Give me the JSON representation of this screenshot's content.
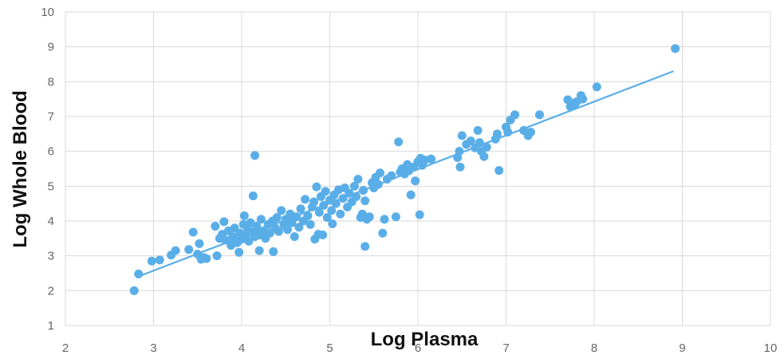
{
  "chart_data": {
    "type": "scatter",
    "title": "",
    "xlabel": "Log Plasma",
    "ylabel": "Log Whole Blood",
    "xlim": [
      2,
      10
    ],
    "ylim": [
      1,
      10
    ],
    "x_ticks": [
      "2",
      "3",
      "4",
      "5",
      "6",
      "7",
      "8",
      "9",
      "10"
    ],
    "y_ticks": [
      "1",
      "2",
      "3",
      "4",
      "5",
      "6",
      "7",
      "8",
      "9",
      "10"
    ],
    "grid": true,
    "legend": "none",
    "colors": {
      "points": "#5aaee8",
      "trendline": "#5aaee8",
      "grid": "#d9d9d9"
    },
    "trendline": {
      "x": [
        2.8,
        8.9
      ],
      "y": [
        2.38,
        8.3
      ]
    },
    "points": [
      [
        2.78,
        2.0
      ],
      [
        2.83,
        2.48
      ],
      [
        2.98,
        2.85
      ],
      [
        3.07,
        2.88
      ],
      [
        3.2,
        3.02
      ],
      [
        3.25,
        3.15
      ],
      [
        3.4,
        3.18
      ],
      [
        3.45,
        3.68
      ],
      [
        3.5,
        3.05
      ],
      [
        3.52,
        3.35
      ],
      [
        3.54,
        2.9
      ],
      [
        3.57,
        2.95
      ],
      [
        3.6,
        2.92
      ],
      [
        3.7,
        3.85
      ],
      [
        3.72,
        3.0
      ],
      [
        3.75,
        3.5
      ],
      [
        3.78,
        3.62
      ],
      [
        3.8,
        3.98
      ],
      [
        3.82,
        3.45
      ],
      [
        3.85,
        3.72
      ],
      [
        3.88,
        3.3
      ],
      [
        3.9,
        3.55
      ],
      [
        3.92,
        3.8
      ],
      [
        3.95,
        3.38
      ],
      [
        3.97,
        3.1
      ],
      [
        3.98,
        3.65
      ],
      [
        4.0,
        3.48
      ],
      [
        4.02,
        3.9
      ],
      [
        4.03,
        4.15
      ],
      [
        4.05,
        3.6
      ],
      [
        4.07,
        3.75
      ],
      [
        4.08,
        3.42
      ],
      [
        4.1,
        3.95
      ],
      [
        4.12,
        3.68
      ],
      [
        4.13,
        4.72
      ],
      [
        4.15,
        5.88
      ],
      [
        4.15,
        3.55
      ],
      [
        4.17,
        3.85
      ],
      [
        4.2,
        3.6
      ],
      [
        4.2,
        3.15
      ],
      [
        4.22,
        4.05
      ],
      [
        4.25,
        3.72
      ],
      [
        4.27,
        3.5
      ],
      [
        4.3,
        3.9
      ],
      [
        4.32,
        3.65
      ],
      [
        4.35,
        4.0
      ],
      [
        4.36,
        3.12
      ],
      [
        4.38,
        3.8
      ],
      [
        4.4,
        4.1
      ],
      [
        4.42,
        3.7
      ],
      [
        4.45,
        4.3
      ],
      [
        4.48,
        3.88
      ],
      [
        4.5,
        4.05
      ],
      [
        4.52,
        3.75
      ],
      [
        4.55,
        4.2
      ],
      [
        4.57,
        3.95
      ],
      [
        4.6,
        3.55
      ],
      [
        4.62,
        4.12
      ],
      [
        4.65,
        3.82
      ],
      [
        4.67,
        4.35
      ],
      [
        4.7,
        4.0
      ],
      [
        4.72,
        4.62
      ],
      [
        4.75,
        4.15
      ],
      [
        4.78,
        3.9
      ],
      [
        4.8,
        4.4
      ],
      [
        4.82,
        4.55
      ],
      [
        4.83,
        3.48
      ],
      [
        4.85,
        4.98
      ],
      [
        4.87,
        3.62
      ],
      [
        4.88,
        4.25
      ],
      [
        4.9,
        4.7
      ],
      [
        4.92,
        3.6
      ],
      [
        4.93,
        4.45
      ],
      [
        4.95,
        4.85
      ],
      [
        4.97,
        4.1
      ],
      [
        5.0,
        4.6
      ],
      [
        5.02,
        4.3
      ],
      [
        5.03,
        3.92
      ],
      [
        5.05,
        4.75
      ],
      [
        5.07,
        4.5
      ],
      [
        5.1,
        4.9
      ],
      [
        5.12,
        4.2
      ],
      [
        5.15,
        4.65
      ],
      [
        5.17,
        4.95
      ],
      [
        5.2,
        4.4
      ],
      [
        5.22,
        4.8
      ],
      [
        5.25,
        4.55
      ],
      [
        5.28,
        5.0
      ],
      [
        5.3,
        4.7
      ],
      [
        5.32,
        5.2
      ],
      [
        5.35,
        4.1
      ],
      [
        5.37,
        4.2
      ],
      [
        5.38,
        4.88
      ],
      [
        5.4,
        3.27
      ],
      [
        5.4,
        4.58
      ],
      [
        5.42,
        4.05
      ],
      [
        5.45,
        4.12
      ],
      [
        5.48,
        5.1
      ],
      [
        5.5,
        4.95
      ],
      [
        5.52,
        5.25
      ],
      [
        5.55,
        5.05
      ],
      [
        5.57,
        5.38
      ],
      [
        5.6,
        3.65
      ],
      [
        5.62,
        4.05
      ],
      [
        5.65,
        5.2
      ],
      [
        5.7,
        5.3
      ],
      [
        5.75,
        4.12
      ],
      [
        5.78,
        6.27
      ],
      [
        5.8,
        5.4
      ],
      [
        5.82,
        5.5
      ],
      [
        5.85,
        5.35
      ],
      [
        5.88,
        5.62
      ],
      [
        5.9,
        5.45
      ],
      [
        5.92,
        4.75
      ],
      [
        5.95,
        5.55
      ],
      [
        5.97,
        5.15
      ],
      [
        6.0,
        5.7
      ],
      [
        6.02,
        4.18
      ],
      [
        6.03,
        5.8
      ],
      [
        6.05,
        5.6
      ],
      [
        6.08,
        5.75
      ],
      [
        6.15,
        5.78
      ],
      [
        6.45,
        5.82
      ],
      [
        6.47,
        6.0
      ],
      [
        6.48,
        5.55
      ],
      [
        6.5,
        6.45
      ],
      [
        6.55,
        6.2
      ],
      [
        6.6,
        6.3
      ],
      [
        6.65,
        6.1
      ],
      [
        6.68,
        6.6
      ],
      [
        6.7,
        6.25
      ],
      [
        6.72,
        6.0
      ],
      [
        6.75,
        5.85
      ],
      [
        6.78,
        6.12
      ],
      [
        6.88,
        6.35
      ],
      [
        6.9,
        6.5
      ],
      [
        6.92,
        5.45
      ],
      [
        7.0,
        6.7
      ],
      [
        7.02,
        6.55
      ],
      [
        7.05,
        6.9
      ],
      [
        7.1,
        7.05
      ],
      [
        7.2,
        6.6
      ],
      [
        7.25,
        6.45
      ],
      [
        7.28,
        6.55
      ],
      [
        7.38,
        7.05
      ],
      [
        7.7,
        7.48
      ],
      [
        7.73,
        7.28
      ],
      [
        7.75,
        7.38
      ],
      [
        7.78,
        7.35
      ],
      [
        7.8,
        7.42
      ],
      [
        7.85,
        7.6
      ],
      [
        7.87,
        7.5
      ],
      [
        8.03,
        7.85
      ],
      [
        8.92,
        8.95
      ]
    ]
  }
}
